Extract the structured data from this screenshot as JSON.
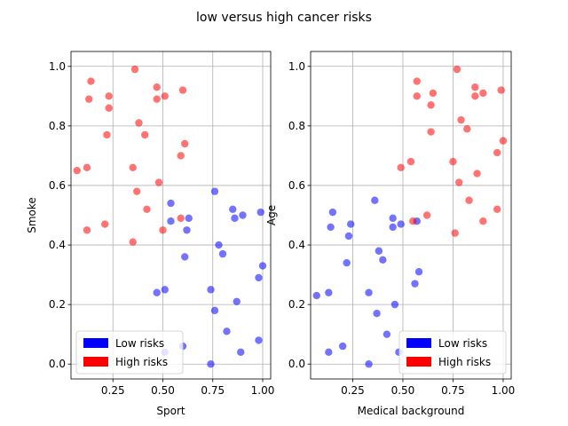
{
  "figure": {
    "title": "low versus high cancer risks"
  },
  "chart_data": [
    {
      "type": "scatter",
      "xlabel": "Sport",
      "ylabel": "Smoke",
      "xlim": [
        0.04,
        1.04
      ],
      "ylim": [
        -0.05,
        1.05
      ],
      "xticks": [
        0.25,
        0.5,
        0.75,
        1.0
      ],
      "xtick_labels": [
        "0.25",
        "0.50",
        "0.75",
        "1.00"
      ],
      "yticks": [
        0.0,
        0.2,
        0.4,
        0.6,
        0.8,
        1.0
      ],
      "ytick_labels": [
        "0.0",
        "0.2",
        "0.4",
        "0.6",
        "0.8",
        "1.0"
      ],
      "grid": true,
      "legend": {
        "placement": "lower-left",
        "entries": [
          {
            "label": "Low risks",
            "color": "#0000ff"
          },
          {
            "label": "High risks",
            "color": "#ff0000"
          }
        ]
      },
      "series": [
        {
          "name": "Low risks",
          "color": "#0000ff",
          "points": [
            [
              0.54,
              0.54
            ],
            [
              0.76,
              0.58
            ],
            [
              0.85,
              0.52
            ],
            [
              0.9,
              0.5
            ],
            [
              0.99,
              0.51
            ],
            [
              0.63,
              0.49
            ],
            [
              0.54,
              0.48
            ],
            [
              0.86,
              0.49
            ],
            [
              0.62,
              0.45
            ],
            [
              0.78,
              0.4
            ],
            [
              0.8,
              0.37
            ],
            [
              0.61,
              0.36
            ],
            [
              1.0,
              0.33
            ],
            [
              0.98,
              0.29
            ],
            [
              0.51,
              0.25
            ],
            [
              0.47,
              0.24
            ],
            [
              0.74,
              0.25
            ],
            [
              0.87,
              0.21
            ],
            [
              0.76,
              0.18
            ],
            [
              0.82,
              0.11
            ],
            [
              0.98,
              0.08
            ],
            [
              0.6,
              0.06
            ],
            [
              0.51,
              0.04
            ],
            [
              0.89,
              0.04
            ],
            [
              0.74,
              0.0
            ]
          ]
        },
        {
          "name": "High risks",
          "color": "#ff0000",
          "points": [
            [
              0.36,
              0.99
            ],
            [
              0.14,
              0.95
            ],
            [
              0.47,
              0.93
            ],
            [
              0.6,
              0.92
            ],
            [
              0.23,
              0.9
            ],
            [
              0.51,
              0.9
            ],
            [
              0.47,
              0.89
            ],
            [
              0.13,
              0.89
            ],
            [
              0.23,
              0.86
            ],
            [
              0.38,
              0.81
            ],
            [
              0.41,
              0.77
            ],
            [
              0.22,
              0.77
            ],
            [
              0.61,
              0.74
            ],
            [
              0.59,
              0.7
            ],
            [
              0.07,
              0.65
            ],
            [
              0.12,
              0.66
            ],
            [
              0.35,
              0.66
            ],
            [
              0.48,
              0.61
            ],
            [
              0.37,
              0.58
            ],
            [
              0.42,
              0.52
            ],
            [
              0.21,
              0.47
            ],
            [
              0.59,
              0.49
            ],
            [
              0.12,
              0.45
            ],
            [
              0.5,
              0.45
            ],
            [
              0.35,
              0.41
            ]
          ]
        }
      ]
    },
    {
      "type": "scatter",
      "xlabel": "Medical background",
      "ylabel": "Age",
      "xlim": [
        0.04,
        1.04
      ],
      "ylim": [
        -0.05,
        1.05
      ],
      "xticks": [
        0.25,
        0.5,
        0.75,
        1.0
      ],
      "xtick_labels": [
        "0.25",
        "0.50",
        "0.75",
        "1.00"
      ],
      "yticks": [
        0.0,
        0.2,
        0.4,
        0.6,
        0.8,
        1.0
      ],
      "ytick_labels": [
        "0.0",
        "0.2",
        "0.4",
        "0.6",
        "0.8",
        "1.0"
      ],
      "grid": true,
      "legend": {
        "placement": "lower-right",
        "entries": [
          {
            "label": "Low risks",
            "color": "#0000ff"
          },
          {
            "label": "High risks",
            "color": "#ff0000"
          }
        ]
      },
      "series": [
        {
          "name": "Low risks",
          "color": "#0000ff",
          "points": [
            [
              0.36,
              0.55
            ],
            [
              0.15,
              0.51
            ],
            [
              0.45,
              0.49
            ],
            [
              0.24,
              0.47
            ],
            [
              0.49,
              0.47
            ],
            [
              0.57,
              0.48
            ],
            [
              0.45,
              0.46
            ],
            [
              0.14,
              0.46
            ],
            [
              0.23,
              0.43
            ],
            [
              0.38,
              0.38
            ],
            [
              0.4,
              0.35
            ],
            [
              0.22,
              0.34
            ],
            [
              0.58,
              0.31
            ],
            [
              0.56,
              0.27
            ],
            [
              0.13,
              0.24
            ],
            [
              0.07,
              0.23
            ],
            [
              0.33,
              0.24
            ],
            [
              0.46,
              0.2
            ],
            [
              0.37,
              0.17
            ],
            [
              0.42,
              0.1
            ],
            [
              0.2,
              0.06
            ],
            [
              0.48,
              0.04
            ],
            [
              0.13,
              0.04
            ],
            [
              0.33,
              0.0
            ]
          ]
        },
        {
          "name": "High risks",
          "color": "#ff0000",
          "points": [
            [
              0.77,
              0.99
            ],
            [
              0.57,
              0.95
            ],
            [
              0.86,
              0.93
            ],
            [
              0.99,
              0.92
            ],
            [
              0.65,
              0.91
            ],
            [
              0.9,
              0.91
            ],
            [
              0.86,
              0.9
            ],
            [
              0.57,
              0.9
            ],
            [
              0.64,
              0.87
            ],
            [
              0.79,
              0.82
            ],
            [
              0.82,
              0.79
            ],
            [
              0.64,
              0.78
            ],
            [
              0.97,
              0.71
            ],
            [
              1.0,
              0.75
            ],
            [
              0.49,
              0.66
            ],
            [
              0.54,
              0.68
            ],
            [
              0.75,
              0.68
            ],
            [
              0.87,
              0.64
            ],
            [
              0.78,
              0.61
            ],
            [
              0.83,
              0.55
            ],
            [
              0.62,
              0.5
            ],
            [
              0.55,
              0.48
            ],
            [
              0.9,
              0.48
            ],
            [
              0.97,
              0.52
            ],
            [
              0.76,
              0.44
            ]
          ]
        }
      ]
    }
  ]
}
